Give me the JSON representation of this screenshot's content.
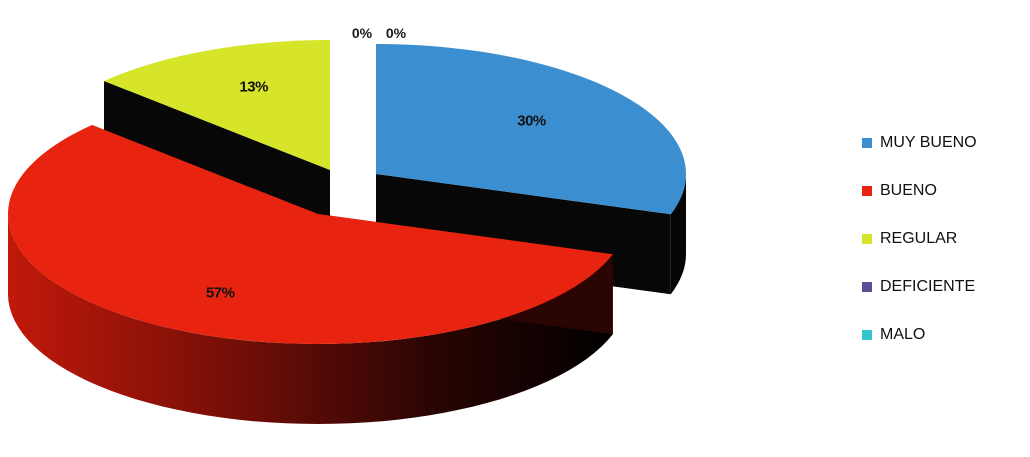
{
  "chart_data": {
    "type": "pie",
    "categories": [
      "MUY BUENO",
      "BUENO",
      "REGULAR",
      "DEFICIENTE",
      "MALO"
    ],
    "values": [
      30,
      57,
      13,
      0,
      0
    ],
    "labels": [
      "30%",
      "57%",
      "13%",
      "0%",
      "0%"
    ],
    "colors": [
      "#3b8fd0",
      "#e8230f",
      "#d6e52a",
      "#5b4e96",
      "#33c7cc"
    ],
    "legend_position": "right",
    "style": "3d-exploded"
  }
}
